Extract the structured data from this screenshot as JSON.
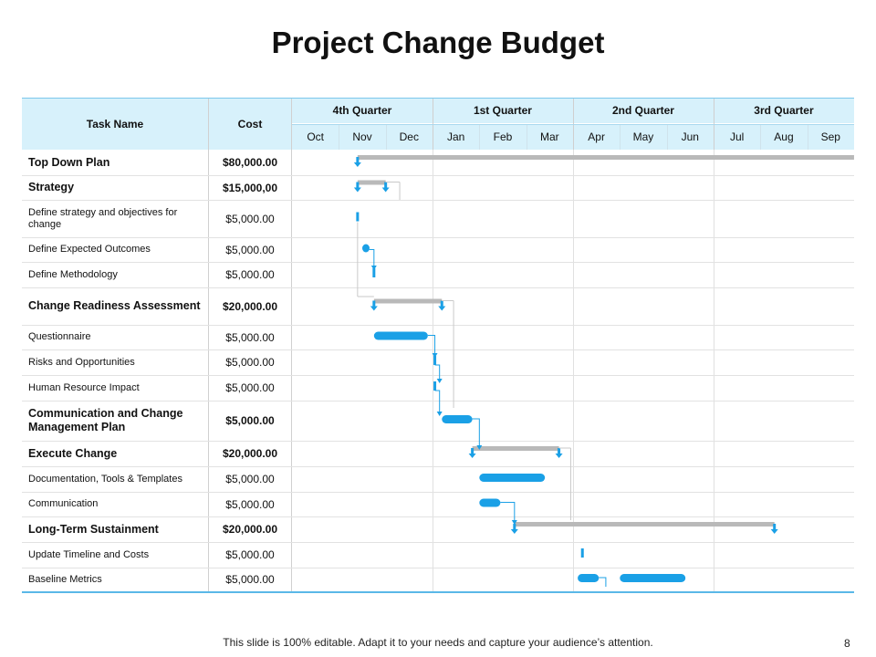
{
  "slide": {
    "title": "Project Change Budget",
    "footer": "This slide is 100% editable. Adapt it to your needs and capture your audience’s attention.",
    "page_number": "8"
  },
  "table": {
    "task_header": "Task Name",
    "cost_header": "Cost",
    "quarters": [
      "4th Quarter",
      "1st Quarter",
      "2nd Quarter",
      "3rd Quarter"
    ],
    "months": [
      "Oct",
      "Nov",
      "Dec",
      "Jan",
      "Feb",
      "Mar",
      "Apr",
      "May",
      "Jun",
      "Jul",
      "Aug",
      "Sep"
    ],
    "rows": [
      {
        "task": "Top Down Plan",
        "cost": "$80,000.00",
        "summary": true
      },
      {
        "task": "Strategy",
        "cost": "$15,000,00",
        "summary": true
      },
      {
        "task": "Define strategy and objectives for change",
        "cost": "$5,000.00",
        "summary": false
      },
      {
        "task": "Define Expected Outcomes",
        "cost": "$5,000.00",
        "summary": false
      },
      {
        "task": "Define Methodology",
        "cost": "$5,000.00",
        "summary": false
      },
      {
        "task": "Change Readiness Assessment",
        "cost": "$20,000.00",
        "summary": true
      },
      {
        "task": "Questionnaire",
        "cost": "$5,000.00",
        "summary": false
      },
      {
        "task": "Risks and Opportunities",
        "cost": "$5,000.00",
        "summary": false
      },
      {
        "task": "Human Resource Impact",
        "cost": "$5,000.00",
        "summary": false
      },
      {
        "task": "Communication and Change Management Plan",
        "cost": "$5,000.00",
        "summary": true
      },
      {
        "task": "Execute Change",
        "cost": "$20,000.00",
        "summary": true
      },
      {
        "task": "Documentation, Tools & Templates",
        "cost": "$5,000.00",
        "summary": false
      },
      {
        "task": "Communication",
        "cost": "$5,000.00",
        "summary": false
      },
      {
        "task": "Long-Term Sustainment",
        "cost": "$20,000.00",
        "summary": true
      },
      {
        "task": "Update Timeline and Costs",
        "cost": "$5,000.00",
        "summary": false
      },
      {
        "task": "Baseline Metrics",
        "cost": "$5,000.00",
        "summary": false
      }
    ]
  },
  "gantt": {
    "unit": "months from start of Oct",
    "bars": [
      {
        "row": 0,
        "type": "summary",
        "start": 1.4,
        "end": 12.0
      },
      {
        "row": 1,
        "type": "summary",
        "start": 1.4,
        "end": 2.0
      },
      {
        "row": 2,
        "type": "milestone",
        "start": 1.4
      },
      {
        "row": 3,
        "type": "task",
        "start": 1.5,
        "end": 1.65
      },
      {
        "row": 4,
        "type": "milestone",
        "start": 1.75
      },
      {
        "row": 5,
        "type": "summary",
        "start": 1.75,
        "end": 3.2
      },
      {
        "row": 6,
        "type": "task",
        "start": 1.75,
        "end": 2.9
      },
      {
        "row": 7,
        "type": "milestone",
        "start": 3.05
      },
      {
        "row": 8,
        "type": "milestone",
        "start": 3.05
      },
      {
        "row": 9,
        "type": "task",
        "start": 3.2,
        "end": 3.85
      },
      {
        "row": 10,
        "type": "summary",
        "start": 3.85,
        "end": 5.7
      },
      {
        "row": 11,
        "type": "task",
        "start": 4.0,
        "end": 5.4
      },
      {
        "row": 12,
        "type": "task",
        "start": 4.0,
        "end": 4.45
      },
      {
        "row": 13,
        "type": "summary",
        "start": 4.75,
        "end": 10.3
      },
      {
        "row": 14,
        "type": "milestone",
        "start": 6.2
      },
      {
        "row": 15,
        "type": "task",
        "start": 6.1,
        "end": 6.55
      },
      {
        "row": 15,
        "type": "task",
        "start": 7.0,
        "end": 8.4
      }
    ]
  },
  "colors": {
    "header_fill": "#d7f1fb",
    "task_bar": "#1aa0e6",
    "summary_bar": "#b9b9b9",
    "accent_line": "#5ab8e8"
  }
}
